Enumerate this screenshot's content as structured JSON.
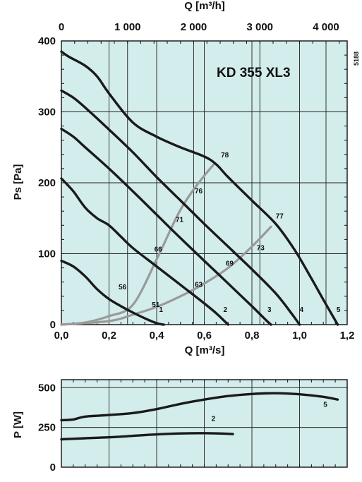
{
  "chart_data": [
    {
      "type": "line",
      "title": "KD 355 XL3",
      "code": "5188",
      "xlabel": "Q [m³/s]",
      "ylabel": "Ps [Pa]",
      "x2label": "Q [m³/h]",
      "xlim": [
        0,
        1.2
      ],
      "ylim": [
        0,
        400
      ],
      "x2lim": [
        0,
        4320
      ],
      "grid": true,
      "background": "#d3ecec",
      "x_ticks": [
        {
          "v": 0,
          "label": "0,0"
        },
        {
          "v": 0.2,
          "label": "0,2"
        },
        {
          "v": 0.4,
          "label": "0,4"
        },
        {
          "v": 0.6,
          "label": "0,6"
        },
        {
          "v": 0.8,
          "label": "0,8"
        },
        {
          "v": 1.0,
          "label": "1,0"
        },
        {
          "v": 1.2,
          "label": "1,2"
        }
      ],
      "y_ticks": [
        {
          "v": 0,
          "label": "0"
        },
        {
          "v": 100,
          "label": "100"
        },
        {
          "v": 200,
          "label": "200"
        },
        {
          "v": 300,
          "label": "300"
        },
        {
          "v": 400,
          "label": "400"
        }
      ],
      "x2_ticks": [
        {
          "v": 0,
          "label": "0"
        },
        {
          "v": 1000,
          "label": "1 000"
        },
        {
          "v": 2000,
          "label": "2 000"
        },
        {
          "v": 3000,
          "label": "3 000"
        },
        {
          "v": 4000,
          "label": "4 000"
        }
      ],
      "series": [
        {
          "name": "1",
          "label_at": [
            0.41,
            18
          ],
          "points": [
            [
              0,
              90
            ],
            [
              0.05,
              82
            ],
            [
              0.1,
              68
            ],
            [
              0.15,
              50
            ],
            [
              0.2,
              36
            ],
            [
              0.25,
              26
            ],
            [
              0.3,
              17
            ],
            [
              0.35,
              9
            ],
            [
              0.4,
              2
            ],
            [
              0.43,
              0
            ]
          ]
        },
        {
          "name": "2",
          "label_at": [
            0.68,
            18
          ],
          "points": [
            [
              0,
              206
            ],
            [
              0.05,
              188
            ],
            [
              0.1,
              165
            ],
            [
              0.15,
              150
            ],
            [
              0.2,
              140
            ],
            [
              0.25,
              124
            ],
            [
              0.3,
              108
            ],
            [
              0.4,
              82
            ],
            [
              0.5,
              56
            ],
            [
              0.6,
              30
            ],
            [
              0.65,
              16
            ],
            [
              0.7,
              0
            ]
          ]
        },
        {
          "name": "3",
          "label_at": [
            0.865,
            18
          ],
          "points": [
            [
              0,
              276
            ],
            [
              0.05,
              265
            ],
            [
              0.1,
              250
            ],
            [
              0.2,
              220
            ],
            [
              0.3,
              188
            ],
            [
              0.4,
              155
            ],
            [
              0.5,
              122
            ],
            [
              0.6,
              90
            ],
            [
              0.7,
              58
            ],
            [
              0.8,
              26
            ],
            [
              0.86,
              6
            ],
            [
              0.88,
              0
            ]
          ]
        },
        {
          "name": "4",
          "label_at": [
            1.0,
            18
          ],
          "points": [
            [
              0,
              330
            ],
            [
              0.05,
              320
            ],
            [
              0.1,
              306
            ],
            [
              0.2,
              275
            ],
            [
              0.3,
              243
            ],
            [
              0.4,
              208
            ],
            [
              0.5,
              175
            ],
            [
              0.6,
              142
            ],
            [
              0.7,
              110
            ],
            [
              0.8,
              78
            ],
            [
              0.9,
              44
            ],
            [
              0.97,
              14
            ],
            [
              1.0,
              0
            ]
          ]
        },
        {
          "name": "5",
          "label_at": [
            1.155,
            18
          ],
          "points": [
            [
              0,
              385
            ],
            [
              0.03,
              378
            ],
            [
              0.1,
              365
            ],
            [
              0.15,
              350
            ],
            [
              0.2,
              326
            ],
            [
              0.3,
              285
            ],
            [
              0.4,
              265
            ],
            [
              0.5,
              250
            ],
            [
              0.6,
              237
            ],
            [
              0.65,
              226
            ],
            [
              0.7,
              208
            ],
            [
              0.8,
              175
            ],
            [
              0.9,
              142
            ],
            [
              0.98,
              105
            ],
            [
              1.05,
              65
            ],
            [
              1.1,
              35
            ],
            [
              1.15,
              6
            ],
            [
              1.16,
              0
            ]
          ]
        }
      ],
      "efficiency_curves": [
        {
          "points": [
            [
              0,
              0
            ],
            [
              0.1,
              3
            ],
            [
              0.2,
              12
            ],
            [
              0.3,
              28
            ],
            [
              0.4,
              92
            ],
            [
              0.45,
              128
            ],
            [
              0.5,
              162
            ],
            [
              0.55,
              188
            ],
            [
              0.6,
              210
            ],
            [
              0.64,
              226
            ]
          ]
        },
        {
          "points": [
            [
              0,
              0
            ],
            [
              0.2,
              5
            ],
            [
              0.3,
              14
            ],
            [
              0.4,
              25
            ],
            [
              0.5,
              40
            ],
            [
              0.6,
              58
            ],
            [
              0.7,
              80
            ],
            [
              0.8,
              110
            ],
            [
              0.88,
              138
            ]
          ]
        }
      ],
      "efficiency_labels": [
        {
          "text": "78",
          "x": 0.67,
          "y": 236
        },
        {
          "text": "76",
          "x": 0.56,
          "y": 185
        },
        {
          "text": "71",
          "x": 0.48,
          "y": 145
        },
        {
          "text": "66",
          "x": 0.39,
          "y": 103
        },
        {
          "text": "56",
          "x": 0.24,
          "y": 50
        },
        {
          "text": "51",
          "x": 0.38,
          "y": 25
        },
        {
          "text": "63",
          "x": 0.56,
          "y": 53
        },
        {
          "text": "69",
          "x": 0.69,
          "y": 83
        },
        {
          "text": "73",
          "x": 0.82,
          "y": 105
        },
        {
          "text": "77",
          "x": 0.9,
          "y": 150
        }
      ]
    },
    {
      "type": "line",
      "ylabel": "P [W]",
      "xlim": [
        0,
        1.2
      ],
      "ylim": [
        0,
        550
      ],
      "grid": true,
      "background": "#d3ecec",
      "y_ticks": [
        {
          "v": 0,
          "label": "0"
        },
        {
          "v": 250,
          "label": "250"
        },
        {
          "v": 500,
          "label": "500"
        }
      ],
      "series": [
        {
          "name": "2",
          "label_at": [
            0.63,
            290
          ],
          "points": [
            [
              0,
              175
            ],
            [
              0.1,
              182
            ],
            [
              0.2,
              188
            ],
            [
              0.3,
              197
            ],
            [
              0.4,
              206
            ],
            [
              0.5,
              212
            ],
            [
              0.6,
              214
            ],
            [
              0.7,
              210
            ],
            [
              0.72,
              208
            ]
          ]
        },
        {
          "name": "5",
          "label_at": [
            1.1,
            380
          ],
          "points": [
            [
              0,
              295
            ],
            [
              0.05,
              300
            ],
            [
              0.1,
              318
            ],
            [
              0.2,
              328
            ],
            [
              0.3,
              340
            ],
            [
              0.4,
              365
            ],
            [
              0.5,
              398
            ],
            [
              0.6,
              425
            ],
            [
              0.7,
              447
            ],
            [
              0.8,
              460
            ],
            [
              0.9,
              465
            ],
            [
              1.0,
              458
            ],
            [
              1.1,
              442
            ],
            [
              1.16,
              425
            ]
          ]
        }
      ]
    }
  ]
}
